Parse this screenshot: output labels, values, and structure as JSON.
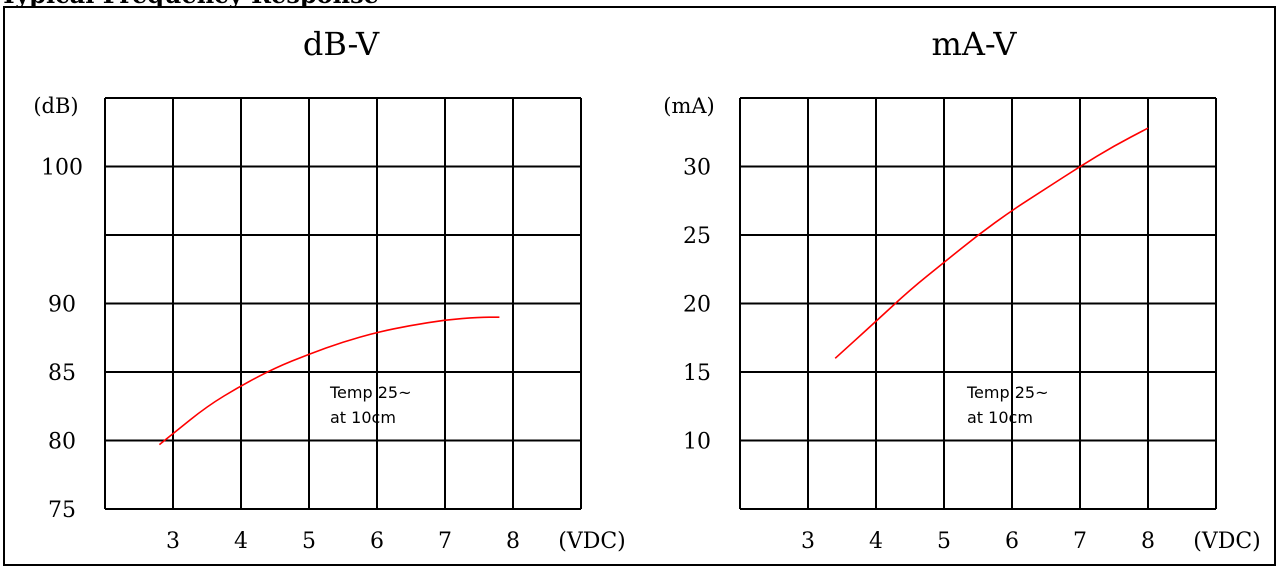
{
  "header": {
    "cut_text": "Typical Frequency Response"
  },
  "colors": {
    "curve": "#ff0000",
    "grid": "#000000",
    "background": "#ffffff"
  },
  "chart_data": [
    {
      "type": "line",
      "title": "dB-V",
      "xlabel": "(VDC)",
      "ylabel": "(dB)",
      "x_ticks": [
        "3",
        "4",
        "5",
        "6",
        "7",
        "8"
      ],
      "y_ticks": [
        "100",
        "90",
        "85",
        "80",
        "75"
      ],
      "annotation": [
        "Temp 25~",
        "at 10cm"
      ],
      "grid": true,
      "series": [
        {
          "x": [
            2.8,
            3.0,
            3.5,
            4.0,
            4.5,
            5.0,
            5.5,
            6.0,
            6.5,
            7.0,
            7.5,
            7.8
          ],
          "values": [
            79.7,
            80.5,
            82.5,
            84.0,
            85.3,
            86.3,
            87.2,
            87.9,
            88.4,
            88.8,
            89.0,
            89.0
          ]
        }
      ]
    },
    {
      "type": "line",
      "title": "mA-V",
      "xlabel": "(VDC)",
      "ylabel": "(mA)",
      "x_ticks": [
        "3",
        "4",
        "5",
        "6",
        "7",
        "8"
      ],
      "y_ticks": [
        "30",
        "25",
        "20",
        "15",
        "10"
      ],
      "annotation": [
        "Temp 25~",
        "at 10cm"
      ],
      "grid": true,
      "series": [
        {
          "x": [
            3.4,
            4.0,
            4.5,
            5.0,
            5.5,
            6.0,
            6.5,
            7.0,
            7.5,
            8.0
          ],
          "values": [
            16.0,
            18.7,
            21.0,
            23.0,
            25.0,
            26.8,
            28.4,
            30.0,
            31.5,
            32.8
          ]
        }
      ]
    }
  ]
}
